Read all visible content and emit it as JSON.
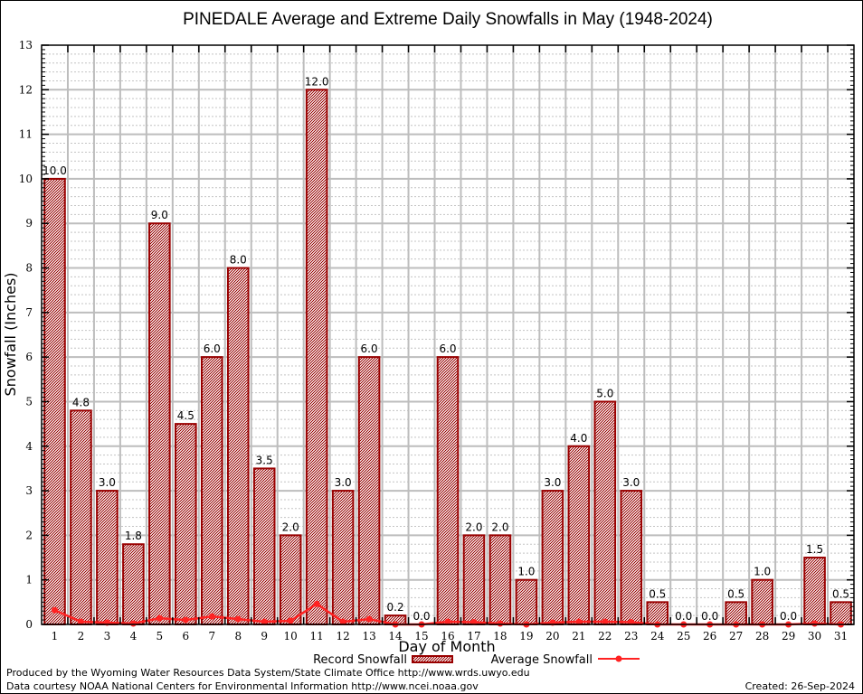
{
  "chart_data": {
    "type": "bar",
    "title": "PINEDALE Average and Extreme Daily Snowfalls in May (1948-2024)",
    "xlabel": "Day of Month",
    "ylabel": "Snowfall (Inches)",
    "ylim": [
      0,
      13
    ],
    "yticks": [
      "0",
      "1",
      "2",
      "3",
      "4",
      "5",
      "6",
      "7",
      "8",
      "9",
      "10",
      "11",
      "12",
      "13"
    ],
    "grid": true,
    "categories": [
      "1",
      "2",
      "3",
      "4",
      "5",
      "6",
      "7",
      "8",
      "9",
      "10",
      "11",
      "12",
      "13",
      "14",
      "15",
      "16",
      "17",
      "18",
      "19",
      "20",
      "21",
      "22",
      "23",
      "24",
      "25",
      "26",
      "27",
      "28",
      "29",
      "30",
      "31"
    ],
    "series": [
      {
        "name": "Record Snowfall",
        "type": "bar",
        "color": "#990000",
        "values": [
          10.0,
          4.8,
          3.0,
          1.8,
          9.0,
          4.5,
          6.0,
          8.0,
          3.5,
          2.0,
          12.0,
          3.0,
          6.0,
          0.2,
          0.0,
          6.0,
          2.0,
          2.0,
          1.0,
          3.0,
          4.0,
          5.0,
          3.0,
          0.5,
          0.0,
          0.0,
          0.5,
          1.0,
          0.0,
          1.5,
          0.5
        ],
        "labels": [
          "10.0",
          "4.8",
          "3.0",
          "1.8",
          "9.0",
          "4.5",
          "6.0",
          "8.0",
          "3.5",
          "2.0",
          "12.0",
          "3.0",
          "6.0",
          "0.2",
          "0.0",
          "6.0",
          "2.0",
          "2.0",
          "1.0",
          "3.0",
          "4.0",
          "5.0",
          "3.0",
          "0.5",
          "0.0",
          "0.0",
          "0.5",
          "1.0",
          "0.0",
          "1.5",
          "0.5"
        ]
      },
      {
        "name": "Average Snowfall",
        "type": "line",
        "color": "#ff2222",
        "values": [
          0.32,
          0.06,
          0.04,
          0.02,
          0.14,
          0.1,
          0.18,
          0.12,
          0.06,
          0.08,
          0.46,
          0.06,
          0.12,
          0.0,
          0.0,
          0.06,
          0.05,
          0.02,
          0.0,
          0.04,
          0.06,
          0.06,
          0.05,
          0.0,
          0.0,
          0.0,
          0.0,
          0.0,
          0.0,
          0.02,
          0.0
        ]
      }
    ],
    "legend": {
      "position": "bottom-center",
      "entries": [
        "Record Snowfall",
        "Average Snowfall"
      ]
    }
  },
  "footer": {
    "line1": "Produced by the Wyoming Water Resources Data System/State Climate Office http://www.wrds.uwyo.edu",
    "line2": "Data courtesy NOAA National Centers for Environmental Information http://www.ncei.noaa.gov",
    "created": "Created: 26-Sep-2024"
  }
}
